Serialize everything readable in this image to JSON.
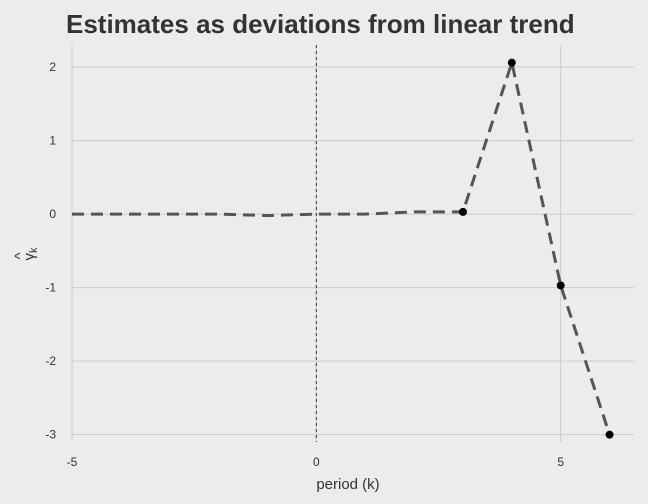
{
  "chart_data": {
    "type": "line",
    "title": "Estimates as deviations from linear trend",
    "xlabel": "period (k)",
    "ylabel": "γ̂k",
    "ylabel_parts": {
      "hat": "^",
      "symbol": "γ",
      "subscript": "k"
    },
    "xlim": [
      -5,
      6.5
    ],
    "ylim": [
      -3.1,
      2.3
    ],
    "x_ticks": [
      -5,
      0,
      5
    ],
    "x_tick_labels": [
      "-5",
      "0",
      "5"
    ],
    "y_ticks": [
      -3,
      -2,
      -1,
      0,
      1,
      2
    ],
    "y_tick_labels": [
      "-3",
      "-2",
      "-1",
      "0",
      "1",
      "2"
    ],
    "grid": true,
    "reference_line": {
      "axis": "x",
      "value": 0,
      "style": "dotted"
    },
    "series": [
      {
        "style": "dashed",
        "color": "#555555",
        "x": [
          -5,
          -4,
          -3,
          -2,
          -1,
          0,
          1,
          2,
          3,
          4,
          5,
          6
        ],
        "y": [
          0,
          0,
          0,
          0,
          -0.02,
          0,
          0,
          0.03,
          0.03,
          2.06,
          -0.97,
          -3.0
        ]
      },
      {
        "style": "points",
        "color": "#000000",
        "x": [
          3,
          4,
          5,
          6
        ],
        "y": [
          0.03,
          2.06,
          -0.97,
          -3.0
        ]
      }
    ]
  }
}
